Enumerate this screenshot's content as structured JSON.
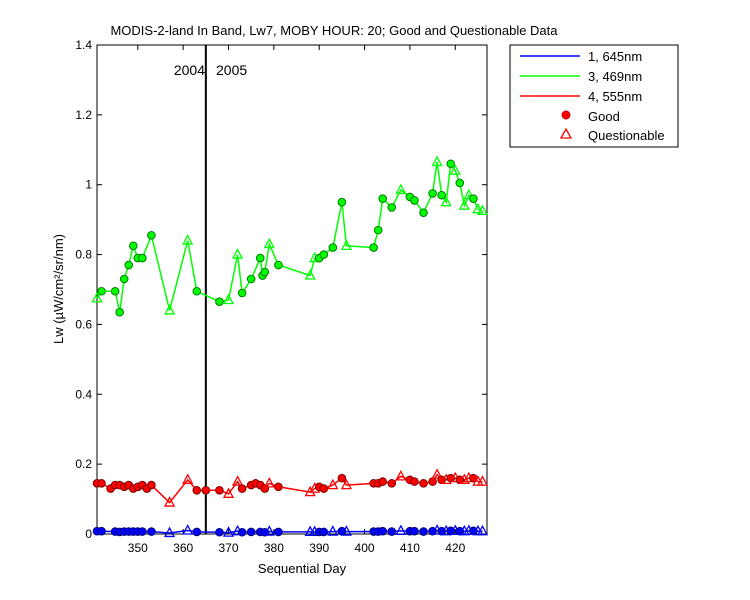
{
  "chart_data": {
    "type": "line",
    "title": "MODIS-2-land In Band,  Lw7, MOBY HOUR: 20;  Good and Questionable Data",
    "xlabel": "Sequential Day",
    "ylabel": "Lw (µW/cm²/sr/nm)",
    "xlim": [
      341,
      427
    ],
    "ylim": [
      0,
      1.4
    ],
    "xticks": [
      "350",
      "360",
      "370",
      "380",
      "390",
      "400",
      "410",
      "420"
    ],
    "yticks": [
      "0",
      "0.2",
      "0.4",
      "0.6",
      "0.8",
      "1",
      "1.2",
      "1.4"
    ],
    "grid": false,
    "legend_position": "outside-top-right",
    "year_divider": {
      "x": 365,
      "left_label": "2004",
      "right_label": "2005"
    },
    "legend": {
      "series1": "1, 645nm",
      "series2": "3, 469nm",
      "series3": "4, 555nm",
      "good": "Good",
      "questionable": "Questionable"
    },
    "series": [
      {
        "name": "3, 469nm",
        "color": "#00ff00",
        "points": [
          [
            341,
            0.675,
            "q"
          ],
          [
            342,
            0.695,
            "g"
          ],
          [
            345,
            0.695,
            "g"
          ],
          [
            346,
            0.635,
            "g"
          ],
          [
            347,
            0.73,
            "g"
          ],
          [
            348,
            0.77,
            "g"
          ],
          [
            349,
            0.825,
            "g"
          ],
          [
            350,
            0.79,
            "g"
          ],
          [
            351,
            0.79,
            "g"
          ],
          [
            353,
            0.855,
            "g"
          ],
          [
            357,
            0.64,
            "q"
          ],
          [
            361,
            0.84,
            "q"
          ],
          [
            363,
            0.695,
            "g"
          ],
          [
            368,
            0.665,
            "g"
          ],
          [
            370,
            0.67,
            "q"
          ],
          [
            372,
            0.8,
            "q"
          ],
          [
            373,
            0.69,
            "g"
          ],
          [
            375,
            0.73,
            "g"
          ],
          [
            377,
            0.79,
            "g"
          ],
          [
            377.5,
            0.74,
            "g"
          ],
          [
            378,
            0.75,
            "g"
          ],
          [
            379,
            0.83,
            "q"
          ],
          [
            381,
            0.77,
            "g"
          ],
          [
            388,
            0.74,
            "q"
          ],
          [
            389,
            0.79,
            "q"
          ],
          [
            390,
            0.79,
            "g"
          ],
          [
            391,
            0.8,
            "g"
          ],
          [
            393,
            0.82,
            "g"
          ],
          [
            395,
            0.95,
            "g"
          ],
          [
            396,
            0.825,
            "q"
          ],
          [
            402,
            0.82,
            "g"
          ],
          [
            403,
            0.87,
            "g"
          ],
          [
            404,
            0.96,
            "g"
          ],
          [
            406,
            0.935,
            "g"
          ],
          [
            408,
            0.985,
            "q"
          ],
          [
            410,
            0.965,
            "g"
          ],
          [
            411,
            0.955,
            "g"
          ],
          [
            413,
            0.92,
            "g"
          ],
          [
            415,
            0.975,
            "g"
          ],
          [
            416,
            1.065,
            "q"
          ],
          [
            417,
            0.97,
            "g"
          ],
          [
            418,
            0.95,
            "q"
          ],
          [
            419,
            1.06,
            "g"
          ],
          [
            420,
            1.04,
            "q"
          ],
          [
            421,
            1.005,
            "g"
          ],
          [
            422,
            0.94,
            "q"
          ],
          [
            423,
            0.97,
            "q"
          ],
          [
            424,
            0.96,
            "g"
          ],
          [
            425,
            0.93,
            "q"
          ],
          [
            426,
            0.925,
            "q"
          ]
        ]
      },
      {
        "name": "4, 555nm",
        "color": "#ff0000",
        "points": [
          [
            341,
            0.145,
            "g"
          ],
          [
            342,
            0.145,
            "g"
          ],
          [
            344,
            0.13,
            "g"
          ],
          [
            345,
            0.14,
            "g"
          ],
          [
            346,
            0.14,
            "g"
          ],
          [
            347,
            0.135,
            "g"
          ],
          [
            348,
            0.14,
            "g"
          ],
          [
            349,
            0.13,
            "g"
          ],
          [
            350,
            0.135,
            "g"
          ],
          [
            351,
            0.14,
            "g"
          ],
          [
            352,
            0.13,
            "g"
          ],
          [
            353,
            0.14,
            "g"
          ],
          [
            357,
            0.09,
            "q"
          ],
          [
            361,
            0.155,
            "q"
          ],
          [
            363,
            0.125,
            "g"
          ],
          [
            365,
            0.125,
            "g"
          ],
          [
            368,
            0.125,
            "g"
          ],
          [
            370,
            0.115,
            "q"
          ],
          [
            372,
            0.15,
            "q"
          ],
          [
            373,
            0.13,
            "g"
          ],
          [
            375,
            0.14,
            "g"
          ],
          [
            376,
            0.145,
            "g"
          ],
          [
            377,
            0.14,
            "g"
          ],
          [
            378,
            0.13,
            "g"
          ],
          [
            379,
            0.145,
            "q"
          ],
          [
            381,
            0.135,
            "g"
          ],
          [
            388,
            0.12,
            "q"
          ],
          [
            389,
            0.13,
            "q"
          ],
          [
            390,
            0.135,
            "g"
          ],
          [
            391,
            0.13,
            "g"
          ],
          [
            393,
            0.14,
            "q"
          ],
          [
            395,
            0.16,
            "g"
          ],
          [
            396,
            0.14,
            "q"
          ],
          [
            402,
            0.145,
            "g"
          ],
          [
            403,
            0.145,
            "g"
          ],
          [
            404,
            0.15,
            "g"
          ],
          [
            406,
            0.145,
            "g"
          ],
          [
            408,
            0.165,
            "q"
          ],
          [
            410,
            0.155,
            "g"
          ],
          [
            411,
            0.15,
            "g"
          ],
          [
            413,
            0.145,
            "g"
          ],
          [
            415,
            0.15,
            "g"
          ],
          [
            416,
            0.17,
            "q"
          ],
          [
            417,
            0.155,
            "g"
          ],
          [
            418,
            0.155,
            "q"
          ],
          [
            419,
            0.16,
            "g"
          ],
          [
            420,
            0.16,
            "q"
          ],
          [
            421,
            0.155,
            "g"
          ],
          [
            422,
            0.155,
            "q"
          ],
          [
            423,
            0.16,
            "q"
          ],
          [
            424,
            0.16,
            "g"
          ],
          [
            425,
            0.15,
            "q"
          ],
          [
            426,
            0.15,
            "q"
          ]
        ]
      },
      {
        "name": "1, 645nm",
        "color": "#0000ff",
        "points": [
          [
            341,
            0.008,
            "g"
          ],
          [
            342,
            0.008,
            "g"
          ],
          [
            345,
            0.007,
            "g"
          ],
          [
            346,
            0.006,
            "g"
          ],
          [
            347,
            0.007,
            "g"
          ],
          [
            348,
            0.007,
            "g"
          ],
          [
            349,
            0.007,
            "g"
          ],
          [
            350,
            0.007,
            "g"
          ],
          [
            351,
            0.007,
            "g"
          ],
          [
            353,
            0.007,
            "g"
          ],
          [
            357,
            0.003,
            "q"
          ],
          [
            361,
            0.01,
            "q"
          ],
          [
            363,
            0.006,
            "g"
          ],
          [
            368,
            0.005,
            "g"
          ],
          [
            370,
            0.004,
            "q"
          ],
          [
            372,
            0.008,
            "q"
          ],
          [
            373,
            0.005,
            "g"
          ],
          [
            375,
            0.006,
            "g"
          ],
          [
            377,
            0.006,
            "g"
          ],
          [
            378,
            0.005,
            "g"
          ],
          [
            379,
            0.007,
            "q"
          ],
          [
            381,
            0.006,
            "g"
          ],
          [
            388,
            0.006,
            "q"
          ],
          [
            389,
            0.006,
            "q"
          ],
          [
            390,
            0.006,
            "g"
          ],
          [
            391,
            0.006,
            "g"
          ],
          [
            393,
            0.007,
            "q"
          ],
          [
            395,
            0.008,
            "g"
          ],
          [
            396,
            0.007,
            "q"
          ],
          [
            402,
            0.007,
            "g"
          ],
          [
            403,
            0.007,
            "g"
          ],
          [
            404,
            0.008,
            "g"
          ],
          [
            406,
            0.007,
            "g"
          ],
          [
            408,
            0.009,
            "q"
          ],
          [
            410,
            0.008,
            "g"
          ],
          [
            411,
            0.008,
            "g"
          ],
          [
            413,
            0.007,
            "g"
          ],
          [
            415,
            0.008,
            "g"
          ],
          [
            416,
            0.01,
            "q"
          ],
          [
            417,
            0.008,
            "g"
          ],
          [
            418,
            0.008,
            "q"
          ],
          [
            419,
            0.009,
            "g"
          ],
          [
            420,
            0.009,
            "q"
          ],
          [
            421,
            0.008,
            "g"
          ],
          [
            422,
            0.008,
            "q"
          ],
          [
            423,
            0.009,
            "q"
          ],
          [
            424,
            0.009,
            "g"
          ],
          [
            425,
            0.008,
            "q"
          ],
          [
            426,
            0.008,
            "q"
          ]
        ]
      }
    ]
  }
}
